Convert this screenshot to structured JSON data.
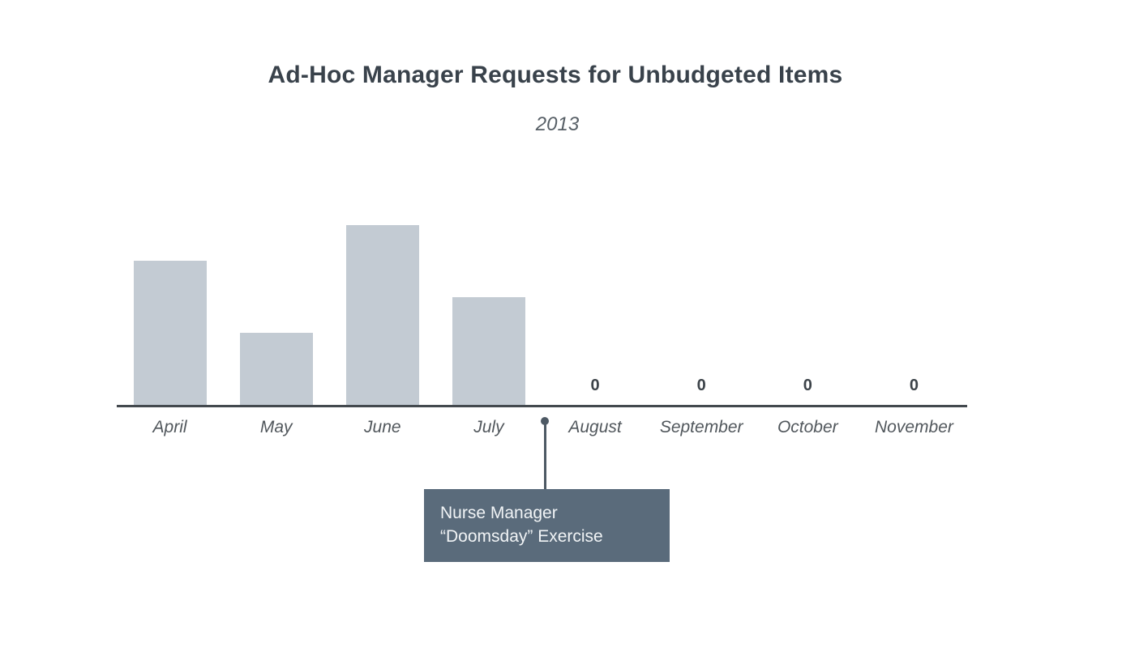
{
  "chart_data": {
    "type": "bar",
    "title": "Ad-Hoc Manager Requests for Unbudgeted Items",
    "subtitle": "2013",
    "categories": [
      "April",
      "May",
      "June",
      "July",
      "August",
      "September",
      "October",
      "November"
    ],
    "values": [
      8,
      4,
      10,
      6,
      0,
      0,
      0,
      0
    ],
    "ylim": [
      0,
      10
    ],
    "xlabel": "",
    "ylabel": "",
    "grid": false,
    "legend": false,
    "y_axis_shown": false,
    "zero_value_data_labels": [
      "0",
      "0",
      "0",
      "0"
    ],
    "bar_color": "#c3cbd3",
    "axis_color": "#43494e",
    "label_color": "#51575c",
    "title_color": "#39424b",
    "annotation": {
      "line1": "Nurse Manager",
      "line2": "“Doomsday” Exercise",
      "attached_at": "between July and August on x-axis",
      "box_color": "#5a6b7b",
      "text_color": "#f1f4f6",
      "connector_color": "#4d5964"
    }
  }
}
